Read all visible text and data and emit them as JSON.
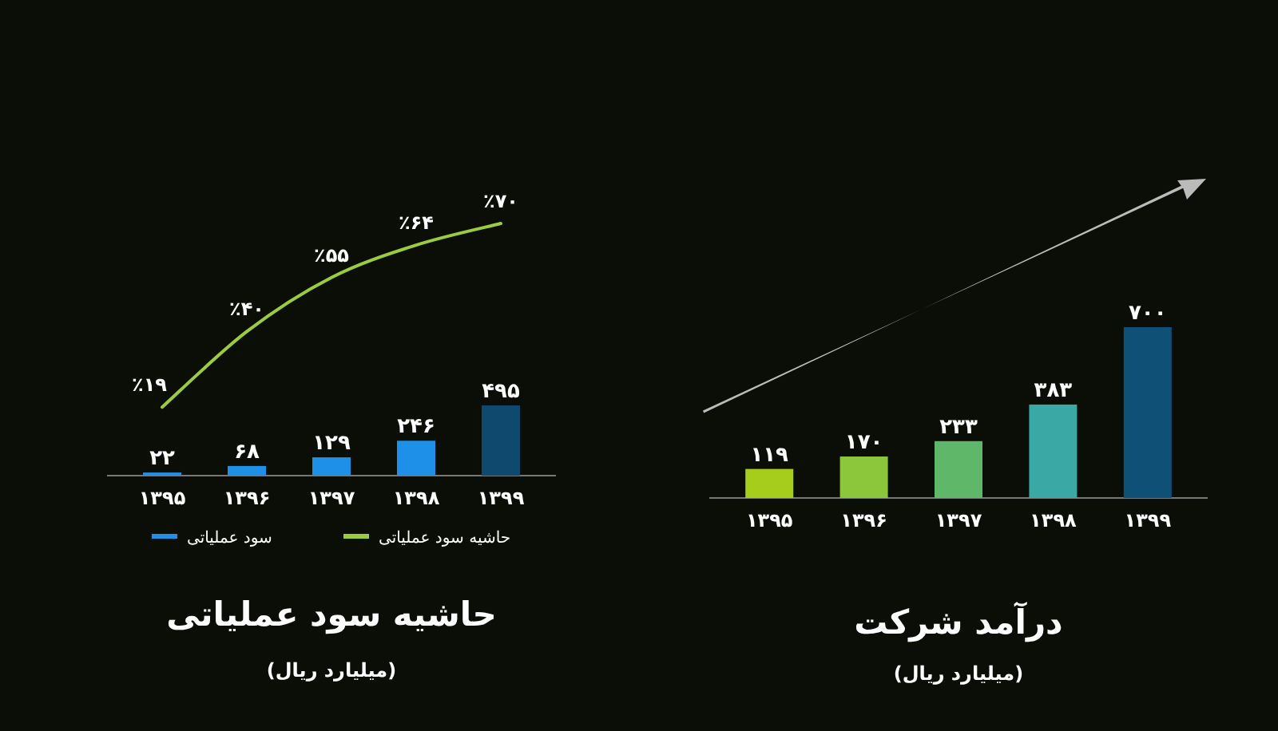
{
  "chart_data": [
    {
      "type": "bar",
      "title": "حاشیه سود عملیاتی",
      "subtitle": "(میلیارد ریال)",
      "categories": [
        "۱۳۹۵",
        "۱۳۹۶",
        "۱۳۹۷",
        "۱۳۹۸",
        "۱۳۹۹"
      ],
      "legend": "bottom",
      "series": [
        {
          "name": "سود عملیاتی",
          "color": "#1e90e8",
          "colors": [
            "#1e90e8",
            "#1e90e8",
            "#1e90e8",
            "#1e90e8",
            "#0f4a6e"
          ],
          "values": [
            22,
            68,
            129,
            246,
            495
          ],
          "value_labels": [
            "۲۲",
            "۶۸",
            "۱۲۹",
            "۲۴۶",
            "۴۹۵"
          ]
        },
        {
          "name": "حاشیه سود عملیاتی",
          "type": "line",
          "axis": "y2",
          "color": "#9ccc3c",
          "values": [
            19,
            40,
            55,
            64,
            70
          ],
          "value_labels": [
            "٪۱۹",
            "٪۴۰",
            "٪۵۵",
            "٪۶۴",
            "٪۷۰"
          ]
        }
      ]
    },
    {
      "type": "bar",
      "title": "درآمد شرکت",
      "subtitle": "(میلیارد ریال)",
      "categories": [
        "۱۳۹۵",
        "۱۳۹۶",
        "۱۳۹۷",
        "۱۳۹۸",
        "۱۳۹۹"
      ],
      "values": [
        119,
        170,
        233,
        383,
        700
      ],
      "colors": [
        "#a6cc1c",
        "#8cc63a",
        "#5fb86a",
        "#3aa9a5",
        "#0f5077"
      ],
      "value_labels": [
        "۱۱۹",
        "۱۷۰",
        "۲۳۳",
        "۳۸۳",
        "۷۰۰"
      ]
    }
  ]
}
